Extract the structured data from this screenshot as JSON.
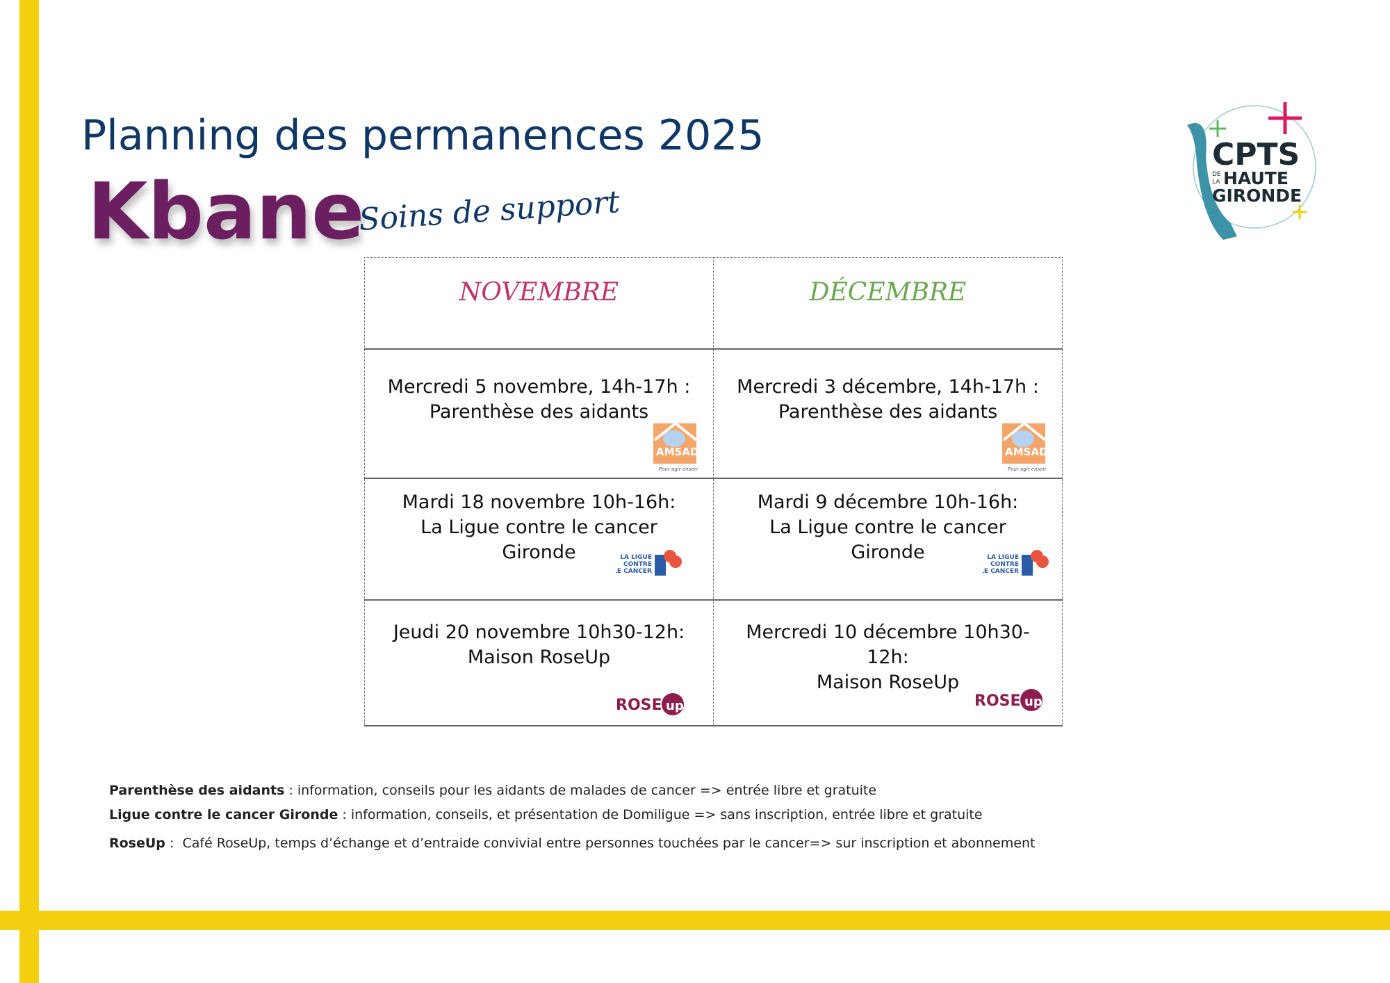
{
  "header": {
    "title": "Planning des permanences 2025",
    "brand": "Kbane",
    "subtitle": "Soins de support",
    "logo_text": "CPTS DE LA HAUTE GIRONDE"
  },
  "table": {
    "months": [
      {
        "label": "NOVEMBRE",
        "color": "#c0336e"
      },
      {
        "label": "DÉCEMBRE",
        "color": "#6aa84f"
      }
    ],
    "rows": [
      {
        "org": "AMSAD",
        "cells": [
          [
            "Mercredi 5 novembre, 14h-17h :",
            "Parenthèse des aidants"
          ],
          [
            "Mercredi 3 décembre, 14h-17h :",
            "Parenthèse des aidants"
          ]
        ]
      },
      {
        "org": "La Ligue contre le cancer",
        "cells": [
          [
            "Mardi 18 novembre 10h-16h:",
            "La Ligue contre le cancer",
            "Gironde"
          ],
          [
            "Mardi 9 décembre 10h-16h:",
            "La Ligue contre le cancer",
            "Gironde"
          ]
        ]
      },
      {
        "org": "RoseUp",
        "cells": [
          [
            "Jeudi 20 novembre 10h30-12h:",
            "Maison RoseUp"
          ],
          [
            "Mercredi 10 décembre 10h30-",
            "12h:",
            "Maison RoseUp"
          ]
        ]
      }
    ]
  },
  "notes": [
    {
      "term": "Parenthèse des aidants",
      "text": " : information, conseils pour les aidants de malades de cancer => entrée libre et gratuite"
    },
    {
      "term": "Ligue contre le cancer Gironde",
      "text": " : information, conseils, et présentation de Domiligue => sans inscription, entrée libre et gratuite"
    },
    {
      "term": "RoseUp",
      "text": " :  Café RoseUp, temps d’échange et d’entraide convivial entre personnes touchées par le cancer=> sur inscription et abonnement"
    }
  ]
}
